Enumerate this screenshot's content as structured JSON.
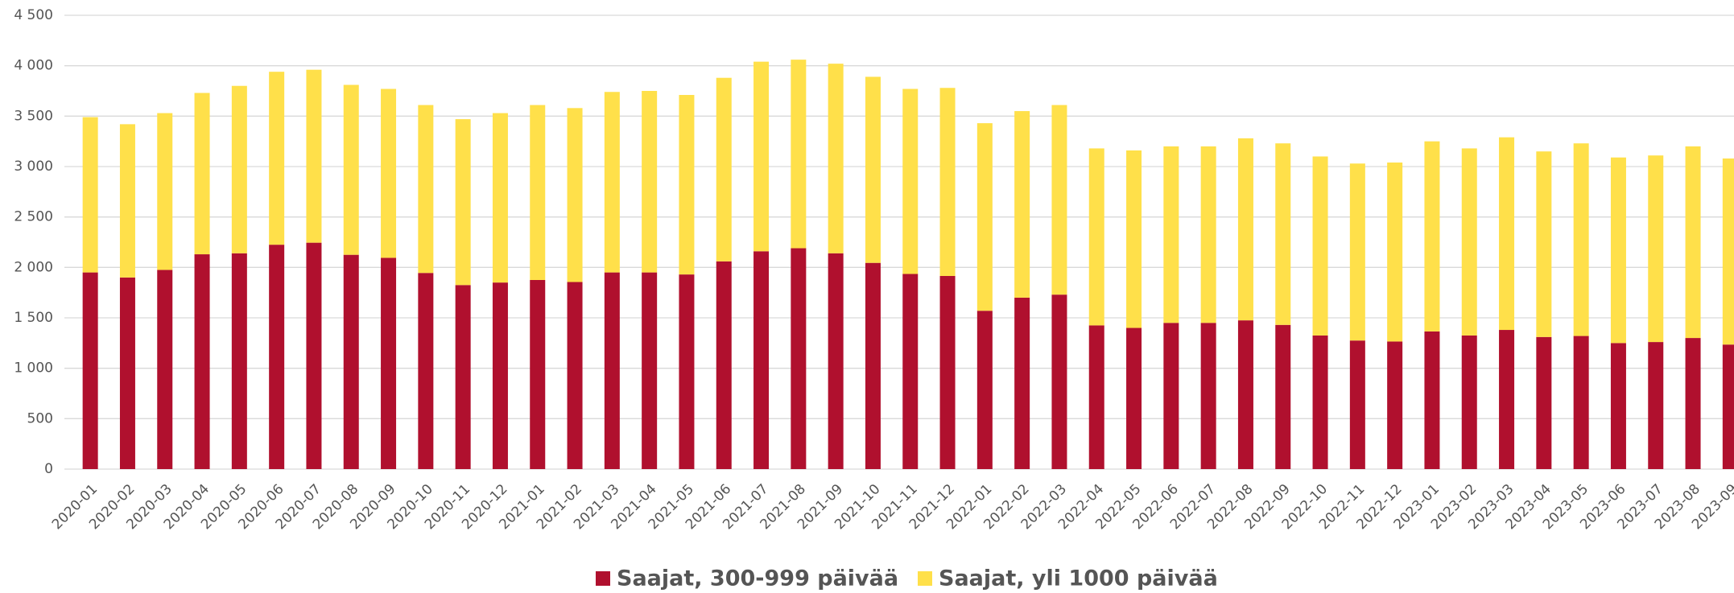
{
  "chart_data": {
    "type": "stacked_bar",
    "categories": [
      "2020-01",
      "2020-02",
      "2020-03",
      "2020-04",
      "2020-05",
      "2020-06",
      "2020-07",
      "2020-08",
      "2020-09",
      "2020-10",
      "2020-11",
      "2020-12",
      "2021-01",
      "2021-02",
      "2021-03",
      "2021-04",
      "2021-05",
      "2021-06",
      "2021-07",
      "2021-08",
      "2021-09",
      "2021-10",
      "2021-11",
      "2021-12",
      "2022-01",
      "2022-02",
      "2022-03",
      "2022-04",
      "2022-05",
      "2022-06",
      "2022-07",
      "2022-08",
      "2022-09",
      "2022-10",
      "2022-11",
      "2022-12",
      "2023-01",
      "2023-02",
      "2023-03",
      "2023-04",
      "2023-05",
      "2023-06",
      "2023-07",
      "2023-08",
      "2023-09"
    ],
    "series": [
      {
        "name": "Saajat, 300-999 päivää",
        "color": "#b0102e",
        "values": [
          1950,
          1900,
          1975,
          2130,
          2140,
          2225,
          2245,
          2125,
          2095,
          1945,
          1825,
          1850,
          1875,
          1855,
          1950,
          1950,
          1930,
          2060,
          2160,
          2190,
          2140,
          2045,
          1935,
          1915,
          1570,
          1700,
          1730,
          1425,
          1400,
          1450,
          1450,
          1475,
          1430,
          1325,
          1275,
          1265,
          1365,
          1325,
          1380,
          1310,
          1320,
          1250,
          1260,
          1300,
          1235
        ]
      },
      {
        "name": "Saajat, yli 1000 päivää",
        "color": "#ffe04a",
        "values": [
          1540,
          1520,
          1555,
          1600,
          1660,
          1715,
          1715,
          1685,
          1675,
          1665,
          1645,
          1680,
          1735,
          1725,
          1790,
          1800,
          1780,
          1820,
          1880,
          1870,
          1880,
          1845,
          1835,
          1865,
          1860,
          1850,
          1880,
          1755,
          1760,
          1750,
          1750,
          1805,
          1800,
          1775,
          1755,
          1775,
          1885,
          1855,
          1910,
          1840,
          1910,
          1840,
          1850,
          1900,
          1845
        ]
      }
    ],
    "ylim": [
      0,
      4500
    ],
    "yticks": [
      0,
      500,
      {
        "value": 1000,
        "label": "1 000"
      },
      {
        "value": 1500,
        "label": "1 500"
      },
      {
        "value": 2000,
        "label": "2 000"
      },
      {
        "value": 2500,
        "label": "2 500"
      },
      {
        "value": 3000,
        "label": "3 000"
      },
      {
        "value": 3500,
        "label": "3 500"
      },
      {
        "value": 4000,
        "label": "4 000"
      },
      {
        "value": 4500,
        "label": "4 500"
      }
    ],
    "grid": true,
    "legend": "bottom"
  }
}
